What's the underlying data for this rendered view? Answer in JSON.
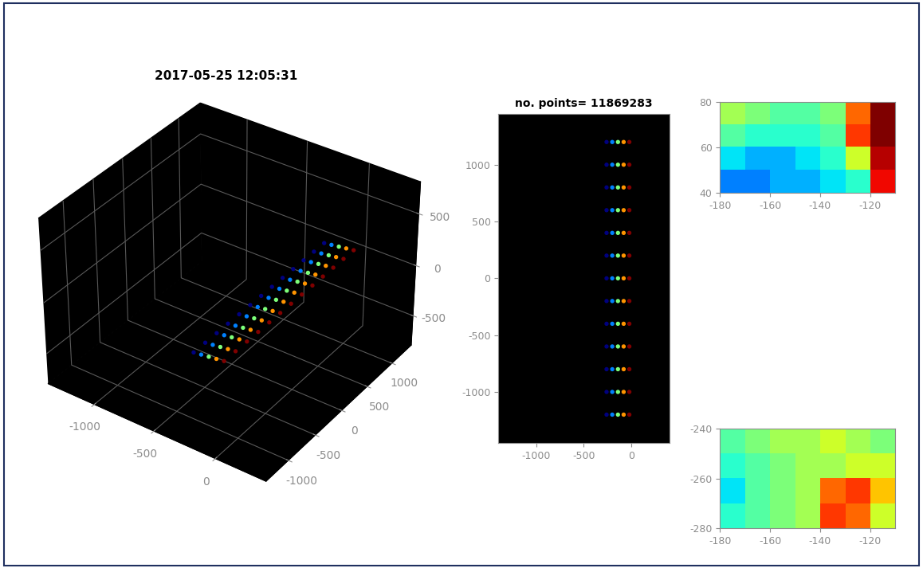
{
  "chart_data": [
    {
      "type": "scatter3d",
      "title": "2017-05-25 12:05:31",
      "x": [
        -260,
        -200,
        -140,
        -80,
        -20,
        -260,
        -200,
        -140,
        -80,
        -20,
        -260,
        -200,
        -140,
        -80,
        -20,
        -260,
        -200,
        -140,
        -80,
        -20,
        -260,
        -200,
        -140,
        -80,
        -20,
        -260,
        -200,
        -140,
        -80,
        -20,
        -260,
        -200,
        -140,
        -80,
        -20,
        -260,
        -200,
        -140,
        -80,
        -20,
        -260,
        -200,
        -140,
        -80,
        -20,
        -260,
        -200,
        -140,
        -80,
        -20,
        -260,
        -200,
        -140,
        -80,
        -20,
        -260,
        -200,
        -140,
        -80,
        -20,
        -260,
        -200,
        -140,
        -80,
        -20
      ],
      "y": [
        1200,
        1200,
        1200,
        1200,
        1200,
        1000,
        1000,
        1000,
        1000,
        1000,
        800,
        800,
        800,
        800,
        800,
        600,
        600,
        600,
        600,
        600,
        400,
        400,
        400,
        400,
        400,
        200,
        200,
        200,
        200,
        200,
        0,
        0,
        0,
        0,
        0,
        -200,
        -200,
        -200,
        -200,
        -200,
        -400,
        -400,
        -400,
        -400,
        -400,
        -600,
        -600,
        -600,
        -600,
        -600,
        -800,
        -800,
        -800,
        -800,
        -800,
        -1000,
        -1000,
        -1000,
        -1000,
        -1000,
        -1200,
        -1200,
        -1200,
        -1200,
        -1200
      ],
      "z": [
        0,
        10,
        20,
        30,
        40,
        0,
        10,
        20,
        30,
        40,
        0,
        10,
        20,
        30,
        40,
        0,
        10,
        20,
        30,
        40,
        0,
        10,
        20,
        30,
        40,
        0,
        10,
        20,
        30,
        40,
        0,
        10,
        20,
        30,
        40,
        0,
        10,
        20,
        30,
        40,
        0,
        10,
        20,
        30,
        40,
        0,
        10,
        20,
        30,
        40,
        0,
        10,
        20,
        30,
        40,
        0,
        10,
        20,
        30,
        40,
        0,
        10,
        20,
        30,
        40
      ],
      "xlim": [
        -1400,
        400
      ],
      "xticks": [
        -1000,
        -500,
        0
      ],
      "ylim": [
        -1400,
        1400
      ],
      "yticks": [
        -1000,
        -500,
        0,
        500,
        1000
      ],
      "zlim": [
        -800,
        800
      ],
      "zticks": [
        -500,
        0,
        500
      ],
      "grid": true
    },
    {
      "type": "scatter",
      "title": "no. points= 11869283",
      "x": [
        -260,
        -200,
        -140,
        -80,
        -20,
        -260,
        -200,
        -140,
        -80,
        -20,
        -260,
        -200,
        -140,
        -80,
        -20,
        -260,
        -200,
        -140,
        -80,
        -20,
        -260,
        -200,
        -140,
        -80,
        -20,
        -260,
        -200,
        -140,
        -80,
        -20,
        -260,
        -200,
        -140,
        -80,
        -20,
        -260,
        -200,
        -140,
        -80,
        -20,
        -260,
        -200,
        -140,
        -80,
        -20,
        -260,
        -200,
        -140,
        -80,
        -20,
        -260,
        -200,
        -140,
        -80,
        -20,
        -260,
        -200,
        -140,
        -80,
        -20,
        -260,
        -200,
        -140,
        -80,
        -20
      ],
      "y": [
        1200,
        1200,
        1200,
        1200,
        1200,
        1000,
        1000,
        1000,
        1000,
        1000,
        800,
        800,
        800,
        800,
        800,
        600,
        600,
        600,
        600,
        600,
        400,
        400,
        400,
        400,
        400,
        200,
        200,
        200,
        200,
        200,
        0,
        0,
        0,
        0,
        0,
        -200,
        -200,
        -200,
        -200,
        -200,
        -400,
        -400,
        -400,
        -400,
        -400,
        -600,
        -600,
        -600,
        -600,
        -600,
        -800,
        -800,
        -800,
        -800,
        -800,
        -1000,
        -1000,
        -1000,
        -1000,
        -1000,
        -1200,
        -1200,
        -1200,
        -1200,
        -1200
      ],
      "xlim": [
        -1400,
        400
      ],
      "xticks": [
        -1000,
        -500,
        0
      ],
      "ylim": [
        -1450,
        1450
      ],
      "yticks": [
        -1000,
        -500,
        0,
        500,
        1000
      ]
    },
    {
      "type": "heatmap",
      "cells": [
        [
          0.55,
          0.5,
          0.45,
          0.45,
          0.5,
          0.8,
          1.0
        ],
        [
          0.45,
          0.4,
          0.4,
          0.4,
          0.45,
          0.85,
          1.0
        ],
        [
          0.35,
          0.3,
          0.3,
          0.35,
          0.4,
          0.6,
          0.95
        ],
        [
          0.25,
          0.25,
          0.3,
          0.3,
          0.35,
          0.4,
          0.9
        ]
      ],
      "xlim": [
        -180,
        -110
      ],
      "xticks": [
        -180,
        -160,
        -140,
        -120
      ],
      "ylim": [
        40,
        80
      ],
      "yticks": [
        40,
        60,
        80
      ]
    },
    {
      "type": "heatmap",
      "cells": [
        [
          0.45,
          0.5,
          0.55,
          0.55,
          0.6,
          0.55,
          0.5
        ],
        [
          0.4,
          0.45,
          0.5,
          0.55,
          0.55,
          0.6,
          0.6
        ],
        [
          0.35,
          0.45,
          0.5,
          0.55,
          0.8,
          0.85,
          0.7
        ],
        [
          0.4,
          0.45,
          0.5,
          0.55,
          0.85,
          0.8,
          0.6
        ]
      ],
      "xlim": [
        -180,
        -110
      ],
      "xticks": [
        -180,
        -160,
        -140,
        -120
      ],
      "ylim": [
        -280,
        -240
      ],
      "yticks": [
        -280,
        -260,
        -240
      ]
    }
  ]
}
